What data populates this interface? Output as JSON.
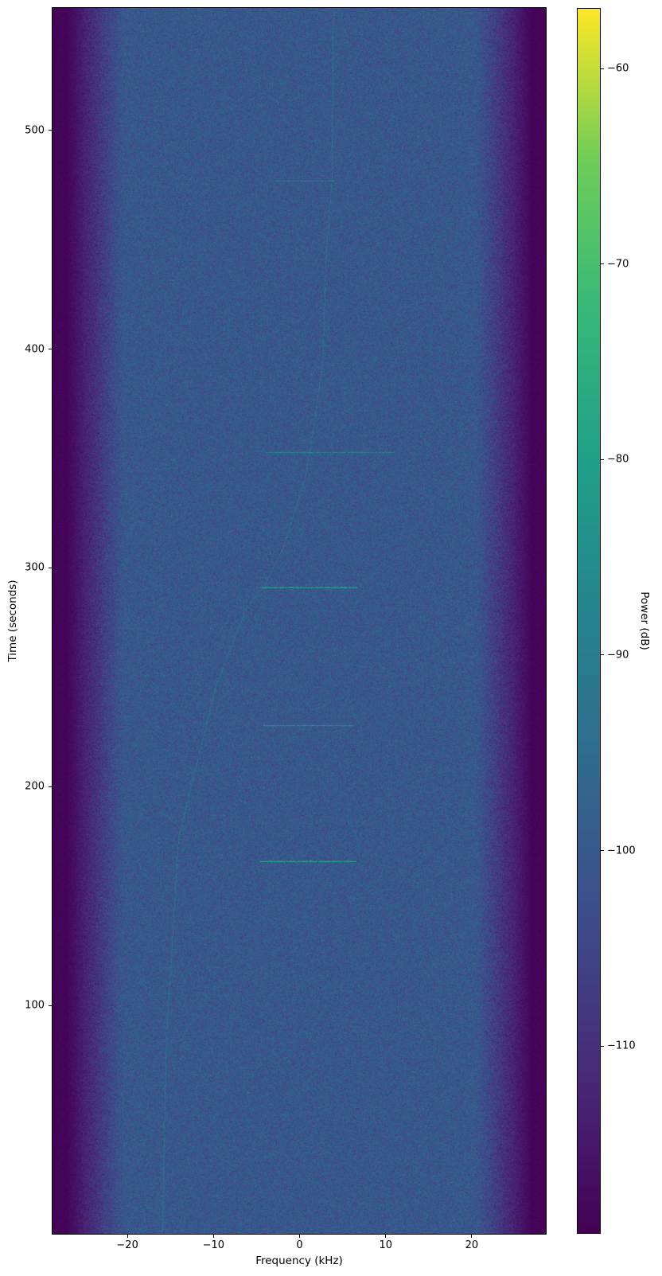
{
  "figure": {
    "kind": "matplotlib-spectrogram",
    "background_color": "#ffffff"
  },
  "chart_data": {
    "type": "heatmap",
    "title": "",
    "xlabel": "Frequency (kHz)",
    "ylabel": "Time (seconds)",
    "colorbar_label": "Power (dB)",
    "xlim": [
      -28.7,
      28.6
    ],
    "ylim": [
      -4.4,
      556
    ],
    "xticks": [
      {
        "value": -20,
        "label": "−20"
      },
      {
        "value": -10,
        "label": "−10"
      },
      {
        "value": 0,
        "label": "0"
      },
      {
        "value": 10,
        "label": "10"
      },
      {
        "value": 20,
        "label": "20"
      }
    ],
    "yticks": [
      {
        "value": 100,
        "label": "100"
      },
      {
        "value": 200,
        "label": "200"
      },
      {
        "value": 300,
        "label": "300"
      },
      {
        "value": 400,
        "label": "400"
      },
      {
        "value": 500,
        "label": "500"
      }
    ],
    "colorbar": {
      "vmin": -119.6,
      "vmax": -56.9,
      "ticks": [
        {
          "value": -60,
          "label": "−60"
        },
        {
          "value": -70,
          "label": "−70"
        },
        {
          "value": -80,
          "label": "−80"
        },
        {
          "value": -90,
          "label": "−90"
        },
        {
          "value": -100,
          "label": "−100"
        },
        {
          "value": -110,
          "label": "−110"
        }
      ]
    },
    "colormap": "viridis",
    "viridis_stops": [
      [
        68,
        1,
        84
      ],
      [
        72,
        40,
        120
      ],
      [
        62,
        74,
        137
      ],
      [
        49,
        104,
        142
      ],
      [
        38,
        130,
        142
      ],
      [
        31,
        158,
        137
      ],
      [
        53,
        183,
        121
      ],
      [
        109,
        205,
        89
      ],
      [
        253,
        231,
        37
      ]
    ],
    "noise_field": {
      "base_db": -100.3,
      "sigma_db": 2.8,
      "flat_half_khz": 20.5,
      "edge_db": -118.8,
      "edge_half_khz": 27.0,
      "hard_edge_khz": 28.1,
      "hard_edge_db": -119.2,
      "seed": 42
    },
    "bursts": [
      {
        "time_s": 477,
        "f_start_khz": -2.8,
        "f_end_khz": 4.0,
        "power_db": -88
      },
      {
        "time_s": 353,
        "f_start_khz": -4.0,
        "f_end_khz": 10.9,
        "power_db": -87
      },
      {
        "time_s": 291,
        "f_start_khz": -4.6,
        "f_end_khz": 6.7,
        "power_db": -79
      },
      {
        "time_s": 228,
        "f_start_khz": -4.2,
        "f_end_khz": 6.1,
        "power_db": -84
      },
      {
        "time_s": 166,
        "f_start_khz": -4.6,
        "f_end_khz": 6.5,
        "power_db": -78
      }
    ],
    "doppler_trace": {
      "power_db": -93,
      "points": [
        [
          556,
          3.9
        ],
        [
          477,
          3.7
        ],
        [
          440,
          3.0
        ],
        [
          396,
          2.7
        ],
        [
          370,
          1.8
        ],
        [
          341,
          0.6
        ],
        [
          309,
          -2.0
        ],
        [
          291,
          -4.3
        ],
        [
          282,
          -6.2
        ],
        [
          247,
          -9.7
        ],
        [
          177,
          -14.1
        ],
        [
          86,
          -15.5
        ],
        [
          -4,
          -16.0
        ]
      ]
    }
  }
}
